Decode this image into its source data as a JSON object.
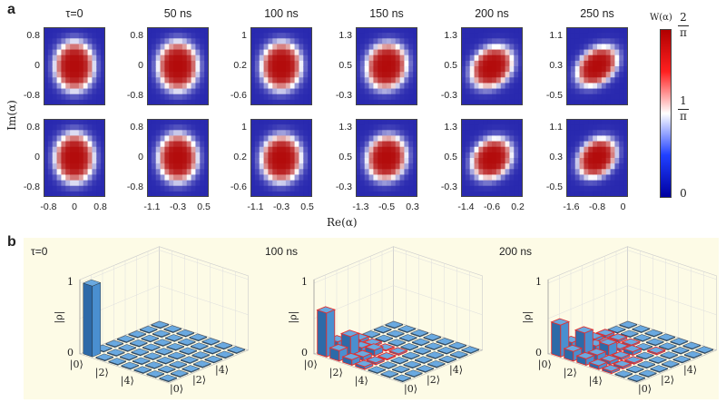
{
  "panel_a_letter": "a",
  "panel_b_letter": "b",
  "chart_data": [
    {
      "type": "heatmap",
      "panel": "a",
      "columns": [
        {
          "title": "τ=0",
          "xticks": [
            "-0.8",
            "0",
            "0.8"
          ],
          "yticks_top": [
            "0.8",
            "0",
            "-0.8"
          ],
          "yticks_bot": [
            "0.8",
            "0",
            "-0.8"
          ],
          "top": {
            "cx": 0.0,
            "cy": 0.0,
            "rx": 0.78,
            "ry": 0.78,
            "tilt": 0
          },
          "bot": {
            "cx": 0.0,
            "cy": 0.0,
            "rx": 0.78,
            "ry": 0.78,
            "tilt": 0
          }
        },
        {
          "title": "50 ns",
          "xticks": [
            "-1.1",
            "-0.3",
            "0.5"
          ],
          "yticks_top": [
            "0.8",
            "0",
            "-0.8"
          ],
          "yticks_bot": [
            "0.8",
            "0",
            "-0.8"
          ],
          "top": {
            "cx": 0.0,
            "cy": 0.0,
            "rx": 0.8,
            "ry": 0.78,
            "tilt": 0
          },
          "bot": {
            "cx": 0.0,
            "cy": 0.0,
            "rx": 0.78,
            "ry": 0.76,
            "tilt": 0
          }
        },
        {
          "title": "100 ns",
          "xticks": [
            "-1.1",
            "-0.3",
            "0.5"
          ],
          "yticks_top": [
            "1",
            "0.2",
            "-0.6"
          ],
          "yticks_bot": [
            "1",
            "0.2",
            "-0.6"
          ],
          "top": {
            "cx": 0.0,
            "cy": 0.0,
            "rx": 0.8,
            "ry": 0.76,
            "tilt": -10
          },
          "bot": {
            "cx": 0.0,
            "cy": 0.02,
            "rx": 0.8,
            "ry": 0.74,
            "tilt": -10
          }
        },
        {
          "title": "150 ns",
          "xticks": [
            "-1.3",
            "-0.5",
            "0.3"
          ],
          "yticks_top": [
            "1.3",
            "0.5",
            "-0.3"
          ],
          "yticks_bot": [
            "1.3",
            "0.5",
            "-0.3"
          ],
          "top": {
            "cx": 0.0,
            "cy": 0.0,
            "rx": 0.82,
            "ry": 0.72,
            "tilt": -18
          },
          "bot": {
            "cx": 0.0,
            "cy": 0.0,
            "rx": 0.8,
            "ry": 0.7,
            "tilt": -18
          }
        },
        {
          "title": "200 ns",
          "xticks": [
            "-1.4",
            "-0.6",
            "0.2"
          ],
          "yticks_top": [
            "1.3",
            "0.5",
            "-0.3"
          ],
          "yticks_bot": [
            "1.3",
            "0.5",
            "-0.3"
          ],
          "top": {
            "cx": 0.0,
            "cy": 0.02,
            "rx": 0.86,
            "ry": 0.62,
            "tilt": -22
          },
          "bot": {
            "cx": 0.0,
            "cy": 0.02,
            "rx": 0.82,
            "ry": 0.62,
            "tilt": -22
          }
        },
        {
          "title": "250 ns",
          "xticks": [
            "-1.6",
            "-0.8",
            "0"
          ],
          "yticks_top": [
            "1.1",
            "0.3",
            "-0.5"
          ],
          "yticks_bot": [
            "1.1",
            "0.3",
            "-0.5"
          ],
          "top": {
            "cx": 0.0,
            "cy": 0.0,
            "rx": 0.86,
            "ry": 0.56,
            "tilt": -26
          },
          "bot": {
            "cx": 0.0,
            "cy": 0.0,
            "rx": 0.8,
            "ry": 0.58,
            "tilt": -26
          }
        }
      ],
      "xlabel": "Re(α)",
      "ylabel": "Im(α)",
      "colorbar": {
        "title": "W(α)",
        "top_num": "2",
        "top_den": "π",
        "mid_num": "1",
        "mid_den": "π",
        "bottom": "0",
        "colors": [
          "#0000a0",
          "#ffffff",
          "#b00000"
        ]
      }
    },
    {
      "type": "bar",
      "panel": "b",
      "subtype": "3d-bar-density-matrix",
      "panels": [
        {
          "title": "τ=0",
          "diag": [
            1.0,
            0.0,
            0.0,
            0.0,
            0.0,
            0.0,
            0.0
          ],
          "offdiag_outline": false
        },
        {
          "title": "100 ns",
          "diag": [
            0.62,
            0.28,
            0.08,
            0.02,
            0.0,
            0.0,
            0.0
          ],
          "offdiag_outline": true
        },
        {
          "title": "200 ns",
          "diag": [
            0.45,
            0.33,
            0.15,
            0.05,
            0.02,
            0.0,
            0.0
          ],
          "offdiag_outline": true
        }
      ],
      "zlabel": "|ρ|",
      "zticks": [
        "1",
        "0"
      ],
      "kets": [
        "|0⟩",
        "|2⟩",
        "|4⟩"
      ],
      "colors": {
        "bar": "#3a7fc4",
        "outline": "#e03030",
        "panel_bg": "#fdfbe6"
      }
    }
  ]
}
